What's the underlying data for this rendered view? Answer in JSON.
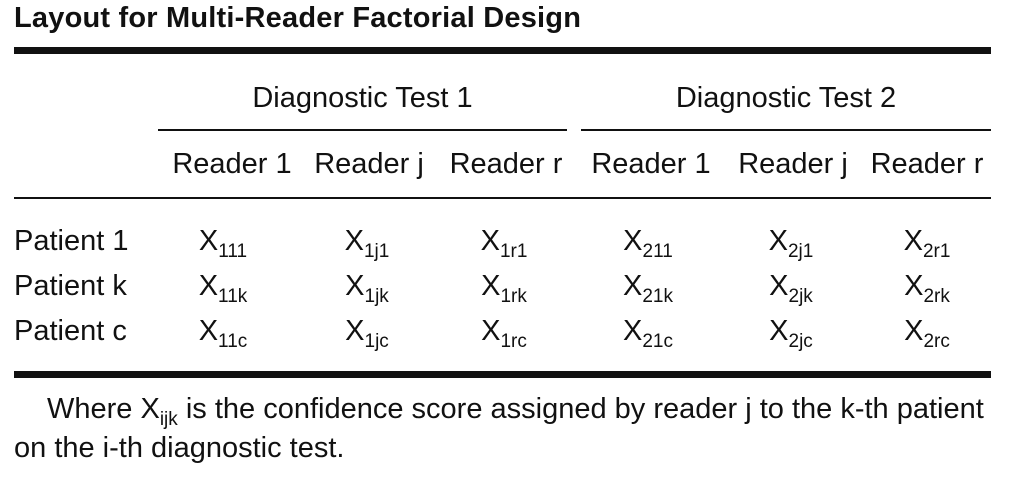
{
  "title": "Layout for Multi-Reader Factorial Design",
  "groups": [
    "Diagnostic Test 1",
    "Diagnostic Test 2"
  ],
  "columns": [
    "Reader 1",
    "Reader j",
    "Reader r",
    "Reader 1",
    "Reader j",
    "Reader r"
  ],
  "rows": [
    {
      "label": "Patient 1",
      "cells": [
        {
          "base": "X",
          "sub": "111"
        },
        {
          "base": "X",
          "sub": "1j1"
        },
        {
          "base": "X",
          "sub": "1r1"
        },
        {
          "base": "X",
          "sub": "211"
        },
        {
          "base": "X",
          "sub": "2j1"
        },
        {
          "base": "X",
          "sub": "2r1"
        }
      ]
    },
    {
      "label": "Patient k",
      "cells": [
        {
          "base": "X",
          "sub": "11k"
        },
        {
          "base": "X",
          "sub": "1jk"
        },
        {
          "base": "X",
          "sub": "1rk"
        },
        {
          "base": "X",
          "sub": "21k"
        },
        {
          "base": "X",
          "sub": "2jk"
        },
        {
          "base": "X",
          "sub": "2rk"
        }
      ]
    },
    {
      "label": "Patient c",
      "cells": [
        {
          "base": "X",
          "sub": "11c"
        },
        {
          "base": "X",
          "sub": "1jc"
        },
        {
          "base": "X",
          "sub": "1rc"
        },
        {
          "base": "X",
          "sub": "21c"
        },
        {
          "base": "X",
          "sub": "2jc"
        },
        {
          "base": "X",
          "sub": "2rc"
        }
      ]
    }
  ],
  "note": {
    "prefix": "Where X",
    "sub": "ijk",
    "suffix": " is the confidence score assigned by reader j to the k-th patient on the i-th diagnostic test."
  }
}
